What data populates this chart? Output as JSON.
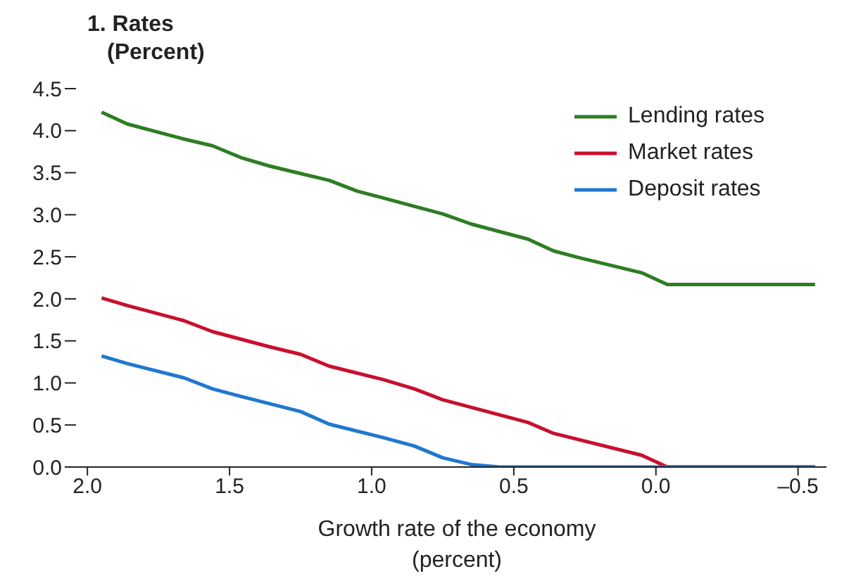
{
  "chart_data": {
    "type": "line",
    "title": "1. Rates",
    "subtitle": "(Percent)",
    "xlabel": "Growth rate of the economy\n(percent)",
    "xlim": [
      2.04,
      -0.6
    ],
    "xticks": [
      {
        "value": 2,
        "label": "2.0"
      },
      {
        "value": 1.5,
        "label": "1.5"
      },
      {
        "value": 1,
        "label": "1.0"
      },
      {
        "value": 0.5,
        "label": "0.5"
      },
      {
        "value": 0,
        "label": "0.0"
      },
      {
        "value": -0.5,
        "label": "–0.5"
      }
    ],
    "ylim": [
      0,
      4.5
    ],
    "yticks": [
      {
        "value": 0,
        "label": "0.0"
      },
      {
        "value": 0.5,
        "label": "0.5"
      },
      {
        "value": 1,
        "label": "1.0"
      },
      {
        "value": 1.5,
        "label": "1.5"
      },
      {
        "value": 2,
        "label": "2.0"
      },
      {
        "value": 2.5,
        "label": "2.5"
      },
      {
        "value": 3,
        "label": "3.0"
      },
      {
        "value": 3.5,
        "label": "3.5"
      },
      {
        "value": 4,
        "label": "4.0"
      },
      {
        "value": 4.5,
        "label": "4.5"
      }
    ],
    "grid": false,
    "legend": "top right",
    "marker": "none",
    "line_style": "solid",
    "series": [
      {
        "name": "Lending rates",
        "color": "#2e7d24",
        "x": [
          1.95,
          1.86,
          1.66,
          1.56,
          1.46,
          1.36,
          1.25,
          1.15,
          1.05,
          0.96,
          0.85,
          0.75,
          0.65,
          0.45,
          0.36,
          0.27,
          0.05,
          -0.04,
          -0.56
        ],
        "values": [
          4.22,
          4.08,
          3.9,
          3.82,
          3.68,
          3.58,
          3.49,
          3.41,
          3.28,
          3.2,
          3.1,
          3.01,
          2.89,
          2.71,
          2.57,
          2.49,
          2.31,
          2.17,
          2.17
        ]
      },
      {
        "name": "Market rates",
        "color": "#c8102e",
        "x": [
          1.95,
          1.86,
          1.66,
          1.56,
          1.46,
          1.36,
          1.25,
          1.15,
          0.96,
          0.85,
          0.75,
          0.45,
          0.36,
          0.05,
          -0.04,
          -0.56
        ],
        "values": [
          2.01,
          1.92,
          1.74,
          1.61,
          1.52,
          1.43,
          1.34,
          1.2,
          1.04,
          0.93,
          0.8,
          0.53,
          0.4,
          0.14,
          0,
          0
        ]
      },
      {
        "name": "Deposit rates",
        "color": "#1f78d1",
        "x": [
          1.95,
          1.86,
          1.66,
          1.56,
          1.46,
          1.25,
          1.15,
          0.96,
          0.85,
          0.75,
          0.65,
          0.55,
          -0.56
        ],
        "values": [
          1.32,
          1.23,
          1.06,
          0.93,
          0.84,
          0.66,
          0.51,
          0.35,
          0.25,
          0.11,
          0.03,
          0,
          0
        ]
      }
    ]
  }
}
